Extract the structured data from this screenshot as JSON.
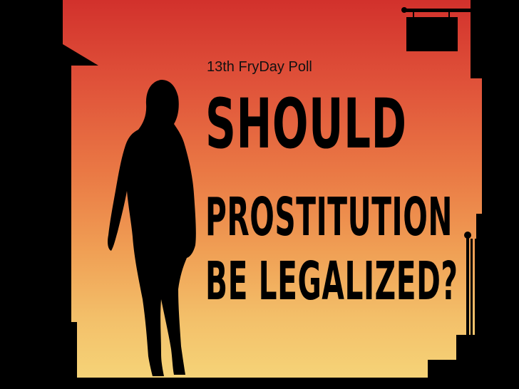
{
  "poster": {
    "subtitle": "13th FryDay Poll",
    "headline": {
      "line1": "SHOULD",
      "line2": "PROSTITUTION",
      "line3": "BE LEGALIZED?"
    }
  },
  "colors": {
    "sky_top": "#d2312c",
    "sky_mid": "#ea7a45",
    "sky_bottom": "#f6d77a",
    "silhouette": "#000000"
  },
  "icons": [
    "hanging-sign-icon",
    "woman-silhouette-icon"
  ]
}
